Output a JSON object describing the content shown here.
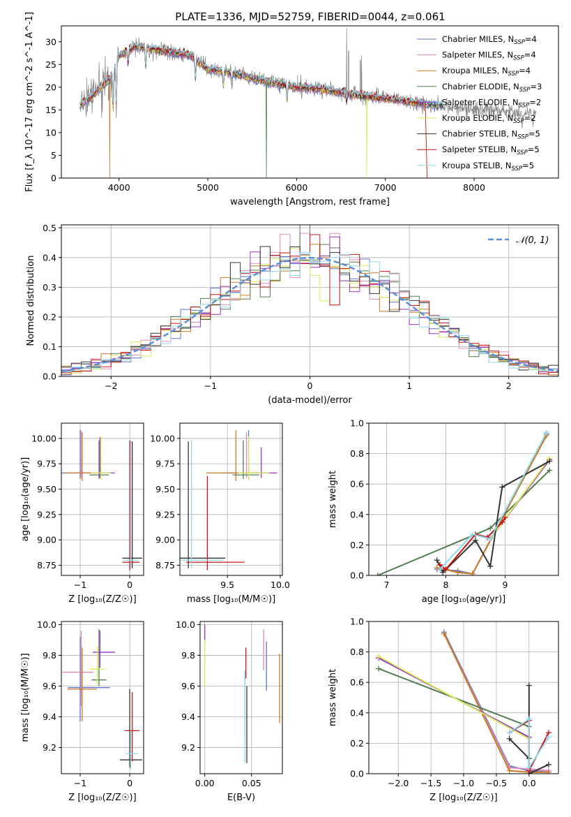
{
  "title": "PLATE=1336, MJD=52759, FIBERID=0044, z=0.061",
  "chart_data": [
    {
      "type": "line",
      "id": "spectrum",
      "xlabel": "wavelength [Angstrom, rest frame]",
      "ylabel": "Flux [f_λ 10^-17 erg cm^-2 s^-1 A^-1]",
      "xlim": [
        3350,
        8950
      ],
      "ylim": [
        0,
        33.5
      ],
      "xticks": [
        4000,
        5000,
        6000,
        7000,
        8000
      ],
      "yticks": [
        0,
        5,
        10,
        15,
        20,
        25,
        30
      ],
      "grid": false,
      "legend": "top-right",
      "legend_entries": [
        {
          "name": "Chabrier MILES, N",
          "sub": "SSP",
          "tail": "=4",
          "color": "#5b74c9"
        },
        {
          "name": "Salpeter MILES, N",
          "sub": "SSP",
          "tail": "=4",
          "color": "#e08ab8"
        },
        {
          "name": "Kroupa MILES, N",
          "sub": "SSP",
          "tail": "=4",
          "color": "#cc7a22"
        },
        {
          "name": "Chabrier ELODIE, N",
          "sub": "SSP",
          "tail": "=3",
          "color": "#4f7d4f"
        },
        {
          "name": "Salpeter ELODIE, N",
          "sub": "SSP",
          "tail": "=2",
          "color": "#9b30c8"
        },
        {
          "name": "Kroupa ELODIE, N",
          "sub": "SSP",
          "tail": "=2",
          "color": "#d6ec56"
        },
        {
          "name": "Chabrier STELIB, N",
          "sub": "SSP",
          "tail": "=5",
          "color": "#333333"
        },
        {
          "name": "Salpeter STELIB, N",
          "sub": "SSP",
          "tail": "=5",
          "color": "#cc1111"
        },
        {
          "name": "Kroupa STELIB, N",
          "sub": "SSP",
          "tail": "=5",
          "color": "#8fd8e8"
        }
      ],
      "data_color": "#808080",
      "continuum": [
        [
          3560,
          16
        ],
        [
          3700,
          18
        ],
        [
          3900,
          22
        ],
        [
          4000,
          27
        ],
        [
          4200,
          29
        ],
        [
          4500,
          28
        ],
        [
          4800,
          27
        ],
        [
          5000,
          24
        ],
        [
          5300,
          23
        ],
        [
          5600,
          21.5
        ],
        [
          6000,
          20
        ],
        [
          6300,
          19.5
        ],
        [
          6600,
          18.5
        ],
        [
          7000,
          17.5
        ],
        [
          7400,
          16.5
        ],
        [
          7800,
          15.5
        ],
        [
          8200,
          14.8
        ],
        [
          8600,
          14.3
        ]
      ],
      "dips": [
        [
          3934,
          8
        ],
        [
          3969,
          9
        ],
        [
          4102,
          3
        ],
        [
          4300,
          4
        ],
        [
          4861,
          4
        ],
        [
          5175,
          3
        ],
        [
          5270,
          2
        ],
        [
          5893,
          3
        ],
        [
          6563,
          2
        ],
        [
          8542,
          2
        ],
        [
          8662,
          2
        ]
      ],
      "spikes": [
        [
          6564,
          33
        ],
        [
          6585,
          28
        ],
        [
          6718,
          26
        ],
        [
          6732,
          27
        ]
      ]
    },
    {
      "type": "histogram",
      "id": "residuals",
      "xlabel": "(data-model)/error",
      "ylabel": "Normed distribution",
      "xlim": [
        -2.5,
        2.5
      ],
      "ylim": [
        0,
        0.51
      ],
      "xticks": [
        -2,
        -1,
        0,
        1,
        2
      ],
      "yticks": [
        0.0,
        0.1,
        0.2,
        0.3,
        0.4,
        0.5
      ],
      "grid": true,
      "legend": "top-right",
      "reference_curve": {
        "name": "𝒩(0, 1)",
        "mean": 0,
        "sigma": 1,
        "color": "#5b8ed8"
      },
      "bins": 50,
      "hist_colors": [
        "#5b74c9",
        "#e08ab8",
        "#cc7a22",
        "#4f7d4f",
        "#9b30c8",
        "#d6ec56",
        "#333333",
        "#cc1111",
        "#8fd8e8"
      ]
    },
    {
      "type": "scatter",
      "id": "age-vs-Z",
      "xlabel": "Z [log₁₀(Z/Z☉)]",
      "ylabel": "age  [log₁₀(age/yr)]",
      "xlim": [
        -1.38,
        0.28
      ],
      "ylim": [
        8.65,
        10.15
      ],
      "xticks": [
        -1,
        0
      ],
      "yticks": [
        8.75,
        9.0,
        9.25,
        9.5,
        9.75,
        10.0
      ],
      "grid": true,
      "errorbars": [
        {
          "x": -1.0,
          "y": 9.66,
          "xerr": [
            0.38,
            0.25
          ],
          "yerr": [
            0.06,
            0.42
          ],
          "color": "#5b74c9"
        },
        {
          "x": -0.98,
          "y": 9.66,
          "xerr": [
            0.25,
            0.2
          ],
          "yerr": [
            0.05,
            0.42
          ],
          "color": "#e08ab8"
        },
        {
          "x": -0.96,
          "y": 9.66,
          "xerr": [
            0.35,
            0.2
          ],
          "yerr": [
            0.08,
            0.4
          ],
          "color": "#cc7a22"
        },
        {
          "x": -0.62,
          "y": 9.64,
          "xerr": [
            0.2,
            0.2
          ],
          "yerr": [
            0.04,
            0.34
          ],
          "color": "#4f7d4f"
        },
        {
          "x": -0.6,
          "y": 9.66,
          "xerr": [
            0.15,
            0.3
          ],
          "yerr": [
            0.05,
            0.35
          ],
          "color": "#9b30c8"
        },
        {
          "x": -0.58,
          "y": 9.66,
          "xerr": [
            0.2,
            0.2
          ],
          "yerr": [
            0.07,
            0.36
          ],
          "color": "#d6ec56"
        },
        {
          "x": 0.05,
          "y": 8.82,
          "xerr": [
            0.2,
            0.2
          ],
          "yerr": [
            0.1,
            1.15
          ],
          "color": "#333333"
        },
        {
          "x": 0.0,
          "y": 8.78,
          "xerr": [
            0.15,
            0.2
          ],
          "yerr": [
            0.08,
            1.2
          ],
          "color": "#cc1111"
        },
        {
          "x": 0.02,
          "y": 8.8,
          "xerr": [
            0.15,
            0.15
          ],
          "yerr": [
            0.08,
            1.18
          ],
          "color": "#8fd8e8"
        }
      ]
    },
    {
      "type": "scatter",
      "id": "age-vs-mass",
      "xlabel": "mass [log₁₀(M/M☉)]",
      "ylabel": "",
      "xlim": [
        9.05,
        10.02
      ],
      "ylim": [
        8.65,
        10.15
      ],
      "xticks": [
        9.5,
        10.0
      ],
      "yticks": [
        8.75,
        9.0,
        9.25,
        9.5,
        9.75,
        10.0
      ],
      "grid": true,
      "errorbars": [
        {
          "x": 9.7,
          "y": 9.66,
          "xerr": [
            0.25,
            0.2
          ],
          "yerr": [
            0.05,
            0.42
          ],
          "color": "#5b74c9"
        },
        {
          "x": 9.68,
          "y": 9.66,
          "xerr": [
            0.2,
            0.2
          ],
          "yerr": [
            0.05,
            0.4
          ],
          "color": "#e08ab8"
        },
        {
          "x": 9.58,
          "y": 9.66,
          "xerr": [
            0.28,
            0.2
          ],
          "yerr": [
            0.08,
            0.42
          ],
          "color": "#cc7a22"
        },
        {
          "x": 9.65,
          "y": 9.64,
          "xerr": [
            0.1,
            0.15
          ],
          "yerr": [
            0.04,
            0.34
          ],
          "color": "#4f7d4f"
        },
        {
          "x": 9.82,
          "y": 9.66,
          "xerr": [
            0.1,
            0.15
          ],
          "yerr": [
            0.05,
            0.25
          ],
          "color": "#9b30c8"
        },
        {
          "x": 9.7,
          "y": 9.66,
          "xerr": [
            0.1,
            0.2
          ],
          "yerr": [
            0.07,
            0.36
          ],
          "color": "#d6ec56"
        },
        {
          "x": 9.13,
          "y": 8.82,
          "xerr": [
            0.1,
            0.35
          ],
          "yerr": [
            0.1,
            1.15
          ],
          "color": "#333333"
        },
        {
          "x": 9.31,
          "y": 8.78,
          "xerr": [
            0.2,
            0.35
          ],
          "yerr": [
            0.08,
            0.85
          ],
          "color": "#cc1111"
        },
        {
          "x": 9.16,
          "y": 8.8,
          "xerr": [
            0.1,
            0.3
          ],
          "yerr": [
            0.08,
            1.18
          ],
          "color": "#8fd8e8"
        }
      ]
    },
    {
      "type": "line",
      "id": "weight-vs-age",
      "xlabel": "age  [log₁₀(age/yr)]",
      "ylabel": "mass weight",
      "xlim": [
        6.7,
        9.9
      ],
      "ylim": [
        0,
        1.0
      ],
      "xticks": [
        7,
        8,
        9
      ],
      "yticks": [
        0.0,
        0.2,
        0.4,
        0.6,
        0.8,
        1.0
      ],
      "grid": true,
      "series": [
        {
          "color": "#5b74c9",
          "x": [
            7.85,
            8.2,
            8.45,
            9.7
          ],
          "y": [
            0.04,
            0.03,
            0.01,
            0.93
          ]
        },
        {
          "color": "#e08ab8",
          "x": [
            7.85,
            8.2,
            8.45,
            9.7
          ],
          "y": [
            0.05,
            0.02,
            0.01,
            0.92
          ]
        },
        {
          "color": "#cc7a22",
          "x": [
            7.85,
            8.2,
            8.45,
            9.7
          ],
          "y": [
            0.05,
            0.02,
            0.01,
            0.92
          ]
        },
        {
          "color": "#4f7d4f",
          "x": [
            6.85,
            8.75,
            9.75
          ],
          "y": [
            0.0,
            0.31,
            0.69
          ]
        },
        {
          "color": "#9b30c8",
          "x": [
            8.75,
            9.75
          ],
          "y": [
            0.24,
            0.76
          ]
        },
        {
          "color": "#d6ec56",
          "x": [
            8.75,
            9.75
          ],
          "y": [
            0.24,
            0.77
          ]
        },
        {
          "color": "#333333",
          "x": [
            7.85,
            7.95,
            8.5,
            8.75,
            8.95,
            9.75
          ],
          "y": [
            0.1,
            0.02,
            0.23,
            0.06,
            0.58,
            0.75
          ]
        },
        {
          "color": "#cc1111",
          "x": [
            7.9,
            8.0,
            8.5,
            8.7,
            8.95,
            9.0
          ],
          "y": [
            0.07,
            0.04,
            0.27,
            0.25,
            0.35,
            0.38
          ]
        },
        {
          "color": "#8fd8e8",
          "x": [
            7.9,
            8.45,
            8.75,
            9.7
          ],
          "y": [
            0.04,
            0.27,
            0.24,
            0.94
          ]
        }
      ]
    },
    {
      "type": "scatter",
      "id": "mass-vs-Z",
      "xlabel": "Z [log₁₀(Z/Z☉)]",
      "ylabel": "mass [log₁₀(M/M☉)]",
      "xlim": [
        -1.38,
        0.28
      ],
      "ylim": [
        9.03,
        10.02
      ],
      "xticks": [
        -1,
        0
      ],
      "yticks": [
        9.2,
        9.4,
        9.6,
        9.8,
        10.0
      ],
      "grid": true,
      "errorbars": [
        {
          "x": -1.0,
          "y": 9.59,
          "xerr": [
            0.25,
            0.6
          ],
          "yerr": [
            0.22,
            0.33
          ],
          "color": "#5b74c9"
        },
        {
          "x": -0.98,
          "y": 9.69,
          "xerr": [
            0.38,
            0.25
          ],
          "yerr": [
            0.22,
            0.27
          ],
          "color": "#e08ab8"
        },
        {
          "x": -0.96,
          "y": 9.58,
          "xerr": [
            0.3,
            0.3
          ],
          "yerr": [
            0.21,
            0.27
          ],
          "color": "#cc7a22"
        },
        {
          "x": -0.62,
          "y": 9.64,
          "xerr": [
            0.15,
            0.15
          ],
          "yerr": [
            0.04,
            0.33
          ],
          "color": "#4f7d4f"
        },
        {
          "x": -0.6,
          "y": 9.82,
          "xerr": [
            0.15,
            0.3
          ],
          "yerr": [
            0.1,
            0.14
          ],
          "color": "#9b30c8"
        },
        {
          "x": -0.65,
          "y": 9.71,
          "xerr": [
            0.15,
            0.15
          ],
          "yerr": [
            0.1,
            0.15
          ],
          "color": "#d6ec56"
        },
        {
          "x": 0.0,
          "y": 9.12,
          "xerr": [
            0.2,
            0.25
          ],
          "yerr": [
            0.05,
            0.46
          ],
          "color": "#333333"
        },
        {
          "x": 0.05,
          "y": 9.31,
          "xerr": [
            0.15,
            0.15
          ],
          "yerr": [
            0.2,
            0.25
          ],
          "color": "#cc1111"
        },
        {
          "x": 0.02,
          "y": 9.16,
          "xerr": [
            0.1,
            0.15
          ],
          "yerr": [
            0.1,
            0.15
          ],
          "color": "#8fd8e8"
        }
      ]
    },
    {
      "type": "scatter",
      "id": "mass-vs-EBV",
      "xlabel": "E(B-V)",
      "ylabel": "",
      "xlim": [
        -0.005,
        0.083
      ],
      "ylim": [
        9.03,
        10.02
      ],
      "xticks": [
        0.0,
        0.05
      ],
      "yticks": [
        9.2,
        9.4,
        9.6,
        9.8,
        10.0
      ],
      "grid": true,
      "errorbars": [
        {
          "x": 0.066,
          "y": 9.72,
          "yerr": [
            0.15,
            0.17
          ],
          "color": "#5b74c9"
        },
        {
          "x": 0.063,
          "y": 9.8,
          "yerr": [
            0.1,
            0.17
          ],
          "color": "#e08ab8"
        },
        {
          "x": 0.08,
          "y": 9.56,
          "yerr": [
            0.2,
            0.25
          ],
          "color": "#cc7a22"
        },
        {
          "x": 0.043,
          "y": 9.52,
          "yerr": [
            0.25,
            0.18
          ],
          "color": "#4f7d4f"
        },
        {
          "x": 0.0,
          "y": 9.95,
          "yerr": [
            0.05,
            0.05
          ],
          "color": "#9b30c8"
        },
        {
          "x": 0.0,
          "y": 9.7,
          "yerr": [
            0.1,
            0.2
          ],
          "color": "#d6ec56"
        },
        {
          "x": 0.045,
          "y": 9.3,
          "yerr": [
            0.2,
            0.3
          ],
          "color": "#333333"
        },
        {
          "x": 0.044,
          "y": 9.75,
          "yerr": [
            0.1,
            0.1
          ],
          "color": "#cc1111"
        },
        {
          "x": 0.043,
          "y": 9.3,
          "yerr": [
            0.2,
            0.4
          ],
          "color": "#8fd8e8"
        }
      ]
    },
    {
      "type": "line",
      "id": "weight-vs-Z",
      "xlabel": "Z [log₁₀(Z/Z☉)]",
      "ylabel": "mass weight",
      "xlim": [
        -2.45,
        0.45
      ],
      "ylim": [
        0,
        1.0
      ],
      "xticks": [
        -2.0,
        -1.5,
        -1.0,
        -0.5,
        0.0
      ],
      "yticks": [
        0.0,
        0.2,
        0.4,
        0.6,
        0.8,
        1.0
      ],
      "grid": true,
      "series": [
        {
          "color": "#5b74c9",
          "x": [
            -1.3,
            -0.3,
            0.0,
            0.3
          ],
          "y": [
            0.93,
            0.05,
            0.02,
            0.01
          ]
        },
        {
          "color": "#e08ab8",
          "x": [
            -1.3,
            -0.3,
            0.0,
            0.3
          ],
          "y": [
            0.92,
            0.04,
            0.03,
            0.02
          ]
        },
        {
          "color": "#cc7a22",
          "x": [
            -1.3,
            -0.3,
            0.0,
            0.3
          ],
          "y": [
            0.92,
            0.02,
            0.01,
            0.01
          ]
        },
        {
          "color": "#4f7d4f",
          "x": [
            -2.3,
            0.0
          ],
          "y": [
            0.69,
            0.31
          ]
        },
        {
          "color": "#9b30c8",
          "x": [
            -2.3,
            0.0
          ],
          "y": [
            0.76,
            0.24
          ]
        },
        {
          "color": "#d6ec56",
          "x": [
            -2.3,
            0.0
          ],
          "y": [
            0.77,
            0.23
          ]
        },
        {
          "color": "#333333",
          "x": [
            -0.3,
            0.0,
            0.0,
            0.0,
            0.3
          ],
          "y": [
            0.23,
            0.1,
            0.58,
            0.0,
            0.06
          ]
        },
        {
          "color": "#cc1111",
          "x": [
            -0.3,
            0.0,
            0.0,
            0.3
          ],
          "y": [
            0.27,
            0.35,
            0.02,
            0.27
          ]
        },
        {
          "color": "#8fd8e8",
          "x": [
            -0.3,
            0.0,
            0.0,
            0.3
          ],
          "y": [
            0.27,
            0.36,
            0.04,
            0.24
          ]
        }
      ]
    }
  ]
}
